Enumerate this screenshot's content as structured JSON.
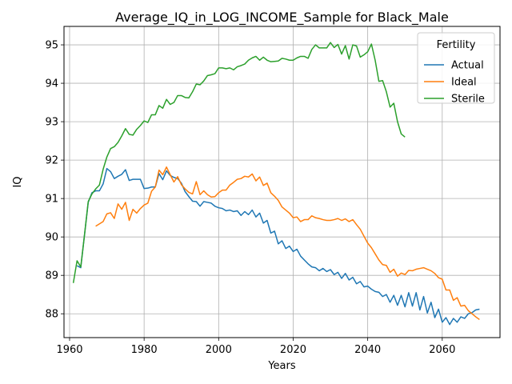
{
  "chart_data": {
    "type": "line",
    "title": "Average_IQ_in_LOG_INCOME_Sample for Black_Male",
    "xlabel": "Years",
    "ylabel": "IQ",
    "xlim": [
      1958.5,
      2075.5
    ],
    "ylim": [
      87.38,
      95.48
    ],
    "xticks": [
      1960,
      1980,
      2000,
      2020,
      2040,
      2060
    ],
    "yticks": [
      88,
      89,
      90,
      91,
      92,
      93,
      94,
      95
    ],
    "grid": true,
    "legend": {
      "title": "Fertility",
      "placement": "top-right"
    },
    "series": [
      {
        "name": "Actual",
        "color": "#1f77b4",
        "x": [
          1962,
          1963,
          1964,
          1965,
          1966,
          1967,
          1968,
          1969,
          1970,
          1971,
          1972,
          1973,
          1974,
          1975,
          1976,
          1977,
          1978,
          1979,
          1980,
          1981,
          1982,
          1983,
          1984,
          1985,
          1986,
          1987,
          1988,
          1989,
          1990,
          1991,
          1992,
          1993,
          1994,
          1995,
          1996,
          1997,
          1998,
          1999,
          2000,
          2001,
          2002,
          2003,
          2004,
          2005,
          2006,
          2007,
          2008,
          2009,
          2010,
          2011,
          2012,
          2013,
          2014,
          2015,
          2016,
          2017,
          2018,
          2019,
          2020,
          2021,
          2022,
          2023,
          2024,
          2025,
          2026,
          2027,
          2028,
          2029,
          2030,
          2031,
          2032,
          2033,
          2034,
          2035,
          2036,
          2037,
          2038,
          2039,
          2040,
          2041,
          2042,
          2043,
          2044,
          2045,
          2046,
          2047,
          2048,
          2049,
          2050,
          2051,
          2052,
          2053,
          2054,
          2055,
          2056,
          2057,
          2058,
          2059,
          2060,
          2061,
          2062,
          2063,
          2064,
          2065,
          2066,
          2067,
          2068,
          2069,
          2070
        ],
        "values": [
          89.25,
          89.2,
          90.05,
          90.9,
          91.15,
          91.2,
          91.2,
          91.38,
          91.78,
          91.7,
          91.52,
          91.58,
          91.63,
          91.75,
          91.47,
          91.5,
          91.5,
          91.5,
          91.26,
          91.27,
          91.3,
          91.3,
          91.65,
          91.49,
          91.72,
          91.6,
          91.55,
          91.52,
          91.4,
          91.18,
          91.05,
          90.93,
          90.92,
          90.8,
          90.92,
          90.9,
          90.88,
          90.8,
          90.76,
          90.74,
          90.68,
          90.7,
          90.66,
          90.68,
          90.56,
          90.66,
          90.58,
          90.7,
          90.52,
          90.62,
          90.36,
          90.43,
          90.1,
          90.15,
          89.82,
          89.9,
          89.7,
          89.76,
          89.62,
          89.68,
          89.5,
          89.4,
          89.3,
          89.22,
          89.2,
          89.12,
          89.18,
          89.1,
          89.15,
          89.02,
          89.08,
          88.92,
          89.05,
          88.88,
          88.95,
          88.78,
          88.84,
          88.7,
          88.72,
          88.64,
          88.58,
          88.56,
          88.45,
          88.5,
          88.3,
          88.48,
          88.22,
          88.48,
          88.18,
          88.55,
          88.2,
          88.55,
          88.1,
          88.45,
          88.02,
          88.3,
          87.9,
          88.12,
          87.78,
          87.9,
          87.72,
          87.88,
          87.78,
          87.92,
          87.88,
          88.0,
          88.03,
          88.1,
          88.12
        ]
      },
      {
        "name": "Ideal",
        "color": "#ff7f0e",
        "x": [
          1967,
          1968,
          1969,
          1970,
          1971,
          1972,
          1973,
          1974,
          1975,
          1976,
          1977,
          1978,
          1979,
          1980,
          1981,
          1982,
          1983,
          1984,
          1985,
          1986,
          1987,
          1988,
          1989,
          1990,
          1991,
          1992,
          1993,
          1994,
          1995,
          1996,
          1997,
          1998,
          1999,
          2000,
          2001,
          2002,
          2003,
          2004,
          2005,
          2006,
          2007,
          2008,
          2009,
          2010,
          2011,
          2012,
          2013,
          2014,
          2015,
          2016,
          2017,
          2018,
          2019,
          2020,
          2021,
          2022,
          2023,
          2024,
          2025,
          2026,
          2027,
          2028,
          2029,
          2030,
          2031,
          2032,
          2033,
          2034,
          2035,
          2036,
          2037,
          2038,
          2039,
          2040,
          2041,
          2042,
          2043,
          2044,
          2045,
          2046,
          2047,
          2048,
          2049,
          2050,
          2051,
          2052,
          2053,
          2054,
          2055,
          2056,
          2057,
          2058,
          2059,
          2060,
          2061,
          2062,
          2063,
          2064,
          2065,
          2066,
          2067,
          2068,
          2069,
          2070
        ],
        "values": [
          90.28,
          90.34,
          90.4,
          90.6,
          90.63,
          90.48,
          90.86,
          90.72,
          90.9,
          90.43,
          90.72,
          90.62,
          90.74,
          90.83,
          90.88,
          91.19,
          91.3,
          91.74,
          91.62,
          91.82,
          91.62,
          91.43,
          91.57,
          91.36,
          91.25,
          91.16,
          91.12,
          91.44,
          91.1,
          91.2,
          91.1,
          91.04,
          91.05,
          91.15,
          91.22,
          91.22,
          91.35,
          91.42,
          91.5,
          91.52,
          91.58,
          91.56,
          91.64,
          91.46,
          91.56,
          91.34,
          91.4,
          91.15,
          91.06,
          90.95,
          90.78,
          90.7,
          90.62,
          90.5,
          90.52,
          90.4,
          90.45,
          90.45,
          90.55,
          90.5,
          90.48,
          90.45,
          90.43,
          90.43,
          90.45,
          90.48,
          90.43,
          90.47,
          90.4,
          90.45,
          90.32,
          90.2,
          90.02,
          89.84,
          89.72,
          89.56,
          89.4,
          89.28,
          89.26,
          89.08,
          89.16,
          88.98,
          89.06,
          89.02,
          89.13,
          89.12,
          89.16,
          89.18,
          89.2,
          89.16,
          89.12,
          89.05,
          88.94,
          88.9,
          88.62,
          88.62,
          88.35,
          88.42,
          88.2,
          88.22,
          88.08,
          88.0,
          87.92,
          87.85
        ]
      },
      {
        "name": "Sterile",
        "color": "#2ca02c",
        "x": [
          1961,
          1962,
          1963,
          1964,
          1965,
          1966,
          1967,
          1968,
          1969,
          1970,
          1971,
          1972,
          1973,
          1974,
          1975,
          1976,
          1977,
          1978,
          1979,
          1980,
          1981,
          1982,
          1983,
          1984,
          1985,
          1986,
          1987,
          1988,
          1989,
          1990,
          1991,
          1992,
          1993,
          1994,
          1995,
          1996,
          1997,
          1998,
          1999,
          2000,
          2001,
          2002,
          2003,
          2004,
          2005,
          2006,
          2007,
          2008,
          2009,
          2010,
          2011,
          2012,
          2013,
          2014,
          2015,
          2016,
          2017,
          2018,
          2019,
          2020,
          2021,
          2022,
          2023,
          2024,
          2025,
          2026,
          2027,
          2028,
          2029,
          2030,
          2031,
          2032,
          2033,
          2034,
          2035,
          2036,
          2037,
          2038,
          2039,
          2040,
          2041,
          2042,
          2043,
          2044,
          2045,
          2046,
          2047,
          2048,
          2049,
          2050
        ],
        "values": [
          88.8,
          89.38,
          89.22,
          90.05,
          90.92,
          91.12,
          91.25,
          91.35,
          91.76,
          92.08,
          92.3,
          92.35,
          92.46,
          92.63,
          92.82,
          92.67,
          92.65,
          92.8,
          92.9,
          93.02,
          92.98,
          93.18,
          93.18,
          93.42,
          93.35,
          93.58,
          93.45,
          93.5,
          93.68,
          93.68,
          93.63,
          93.62,
          93.78,
          93.98,
          93.96,
          94.06,
          94.2,
          94.22,
          94.25,
          94.4,
          94.4,
          94.38,
          94.4,
          94.35,
          94.43,
          94.46,
          94.5,
          94.6,
          94.66,
          94.7,
          94.6,
          94.68,
          94.6,
          94.56,
          94.57,
          94.58,
          94.65,
          94.63,
          94.6,
          94.6,
          94.66,
          94.7,
          94.7,
          94.65,
          94.88,
          95.0,
          94.92,
          94.92,
          94.92,
          95.06,
          94.93,
          95.01,
          94.76,
          94.98,
          94.63,
          95.0,
          94.97,
          94.68,
          94.74,
          94.82,
          95.02,
          94.6,
          94.05,
          94.07,
          93.78,
          93.38,
          93.48,
          93.0,
          92.68,
          92.6
        ]
      }
    ]
  }
}
